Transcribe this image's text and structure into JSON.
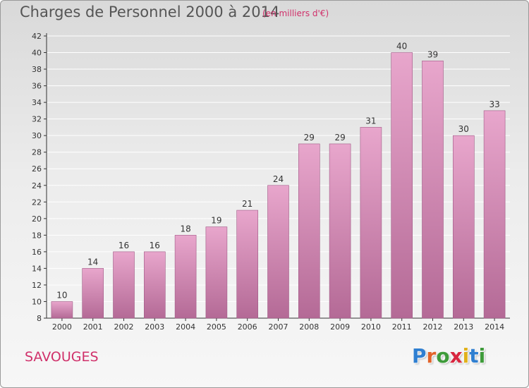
{
  "header": {
    "title": "Charges de Personnel 2000 à 2014",
    "subtitle": "(en milliers d'€)"
  },
  "footer": {
    "place": "SAVOUGES",
    "logo_text": "Proxiti",
    "logo_letter_colors": [
      "#2f7fd1",
      "#e2632a",
      "#3e9b3a",
      "#d8263f",
      "#e1b11b",
      "#2f7fd1",
      "#3e9b3a"
    ]
  },
  "colors": {
    "bar_top": "#e8a6cc",
    "bar_bottom": "#b46a96",
    "bar_edge": "#a05a86",
    "grid": "#ffffff",
    "axis": "#333333",
    "accent": "#d0306a"
  },
  "chart_data": {
    "type": "bar",
    "title": "Charges de Personnel 2000 à 2014",
    "subtitle": "(en milliers d'€)",
    "xlabel": "",
    "ylabel": "",
    "categories": [
      "2000",
      "2001",
      "2002",
      "2003",
      "2004",
      "2005",
      "2006",
      "2007",
      "2008",
      "2009",
      "2010",
      "2011",
      "2012",
      "2013",
      "2014"
    ],
    "values": [
      10,
      14,
      16,
      16,
      18,
      19,
      21,
      24,
      29,
      29,
      31,
      40,
      39,
      30,
      33
    ],
    "ylim": [
      8,
      42
    ],
    "yticks": [
      8,
      10,
      12,
      14,
      16,
      18,
      20,
      22,
      24,
      26,
      28,
      30,
      32,
      34,
      36,
      38,
      40,
      42
    ],
    "grid": true,
    "data_labels": true
  }
}
